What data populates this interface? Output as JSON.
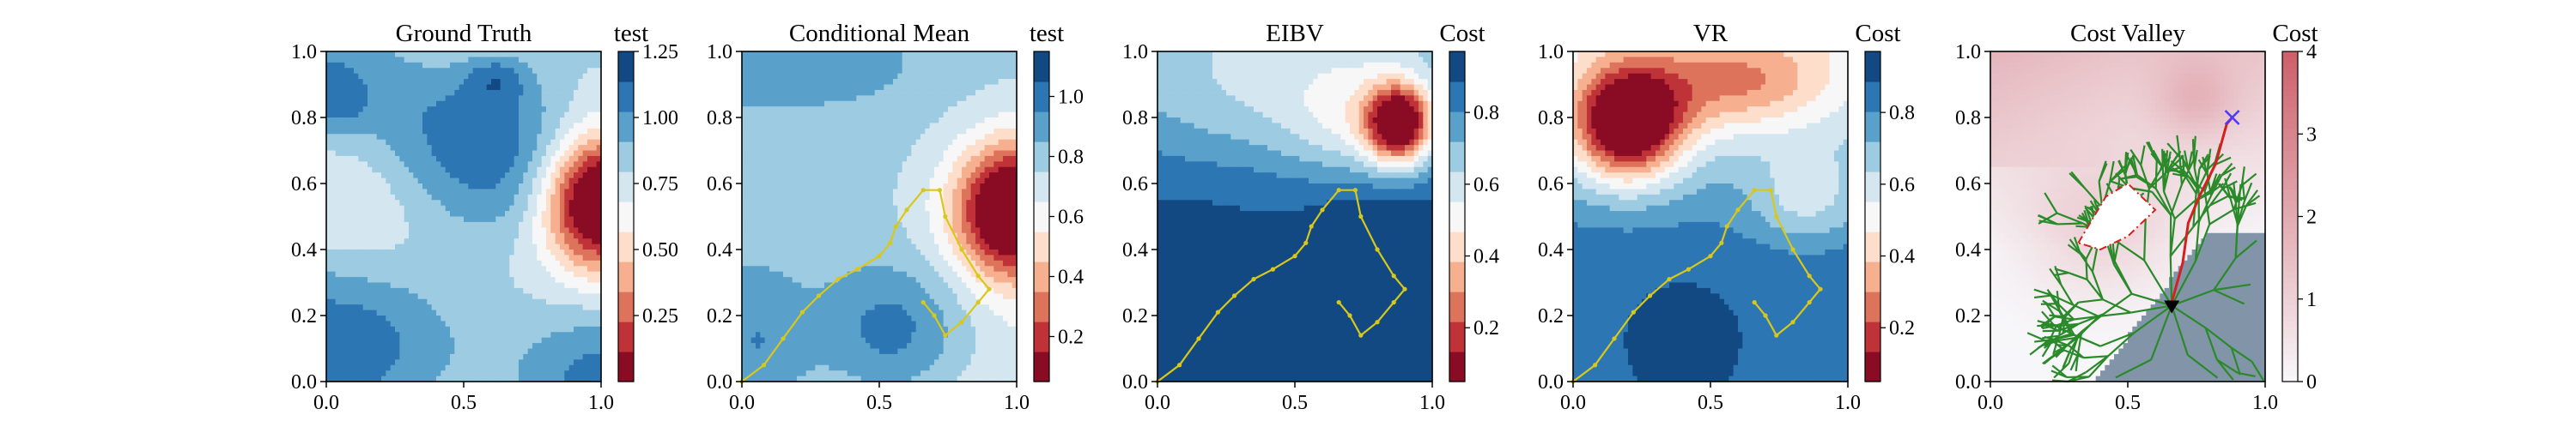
{
  "chart_data": [
    {
      "type": "heatmap",
      "title": "Ground Truth",
      "colorbar_label": "test",
      "colorbar_ticks": [
        "0.25",
        "0.50",
        "0.75",
        "1.00",
        "1.25"
      ],
      "colorbar_range": [
        0.0,
        1.25
      ],
      "colormap": "RdBu",
      "xlim": [
        0,
        1
      ],
      "ylim": [
        0,
        1
      ],
      "xticks": [
        "0.0",
        "0.5",
        "1.0"
      ],
      "yticks": [
        "0.0",
        "0.2",
        "0.4",
        "0.6",
        "0.8",
        "1.0"
      ],
      "field": "ground_truth",
      "path": []
    },
    {
      "type": "heatmap",
      "title": "Conditional Mean",
      "colorbar_label": "test",
      "colorbar_ticks": [
        "0.2",
        "0.4",
        "0.6",
        "0.8",
        "1.0"
      ],
      "colorbar_range": [
        0.05,
        1.15
      ],
      "colormap": "RdBu",
      "xlim": [
        0,
        1
      ],
      "ylim": [
        0,
        1
      ],
      "xticks": [
        "0.0",
        "0.5",
        "1.0"
      ],
      "yticks": [
        "0.0",
        "0.2",
        "0.4",
        "0.6",
        "0.8",
        "1.0"
      ],
      "field": "conditional_mean",
      "path": "sampling_path"
    },
    {
      "type": "heatmap",
      "title": "EIBV",
      "colorbar_label": "Cost",
      "colorbar_ticks": [
        "0.2",
        "0.4",
        "0.6",
        "0.8"
      ],
      "colorbar_range": [
        0.05,
        0.97
      ],
      "colormap": "RdBu_r_cost",
      "xlim": [
        0,
        1
      ],
      "ylim": [
        0,
        1
      ],
      "xticks": [
        "0.0",
        "0.5",
        "1.0"
      ],
      "yticks": [
        "0.0",
        "0.2",
        "0.4",
        "0.6",
        "0.8",
        "1.0"
      ],
      "field": "eibv",
      "path": "sampling_path"
    },
    {
      "type": "heatmap",
      "title": "VR",
      "colorbar_label": "Cost",
      "colorbar_ticks": [
        "0.2",
        "0.4",
        "0.6",
        "0.8"
      ],
      "colorbar_range": [
        0.05,
        0.97
      ],
      "colormap": "RdBu_r_cost",
      "xlim": [
        0,
        1
      ],
      "ylim": [
        0,
        1
      ],
      "xticks": [
        "0.0",
        "0.5",
        "1.0"
      ],
      "yticks": [
        "0.0",
        "0.2",
        "0.4",
        "0.6",
        "0.8",
        "1.0"
      ],
      "field": "vr",
      "path": "sampling_path"
    },
    {
      "type": "heatmap",
      "title": "Cost Valley",
      "colorbar_label": "Cost",
      "colorbar_ticks": [
        "0",
        "1",
        "2",
        "3",
        "4"
      ],
      "colorbar_range": [
        0,
        4
      ],
      "colormap": "cost_valley",
      "xlim": [
        0,
        1
      ],
      "ylim": [
        0,
        1
      ],
      "xticks": [
        "0.0",
        "0.5",
        "1.0"
      ],
      "yticks": [
        "0.0",
        "0.2",
        "0.4",
        "0.6",
        "0.8",
        "1.0"
      ],
      "field": "cost_valley",
      "path": []
    }
  ],
  "sampling_path": [
    [
      0.0,
      0.0
    ],
    [
      0.08,
      0.05
    ],
    [
      0.15,
      0.13
    ],
    [
      0.22,
      0.21
    ],
    [
      0.28,
      0.26
    ],
    [
      0.35,
      0.31
    ],
    [
      0.42,
      0.34
    ],
    [
      0.5,
      0.38
    ],
    [
      0.54,
      0.42
    ],
    [
      0.56,
      0.47
    ],
    [
      0.6,
      0.52
    ],
    [
      0.66,
      0.58
    ],
    [
      0.72,
      0.58
    ],
    [
      0.74,
      0.5
    ],
    [
      0.8,
      0.4
    ],
    [
      0.86,
      0.32
    ],
    [
      0.9,
      0.28
    ],
    [
      0.86,
      0.24
    ],
    [
      0.8,
      0.18
    ],
    [
      0.74,
      0.14
    ],
    [
      0.7,
      0.2
    ],
    [
      0.66,
      0.24
    ]
  ],
  "cost_valley_overlay": {
    "tree_color": "#2a8a2a",
    "selected_path_color": "#d42020",
    "obstacle_polygon": [
      [
        0.32,
        0.42
      ],
      [
        0.42,
        0.56
      ],
      [
        0.5,
        0.6
      ],
      [
        0.6,
        0.52
      ],
      [
        0.5,
        0.44
      ],
      [
        0.4,
        0.4
      ]
    ],
    "selected_path": [
      [
        0.66,
        0.24
      ],
      [
        0.7,
        0.36
      ],
      [
        0.72,
        0.48
      ],
      [
        0.76,
        0.56
      ],
      [
        0.82,
        0.66
      ],
      [
        0.86,
        0.78
      ],
      [
        0.88,
        0.8
      ]
    ],
    "start_point": [
      0.66,
      0.23
    ],
    "goal_point": [
      0.88,
      0.8
    ],
    "goal_color": "#4a3cff",
    "start_color": "#000000"
  }
}
